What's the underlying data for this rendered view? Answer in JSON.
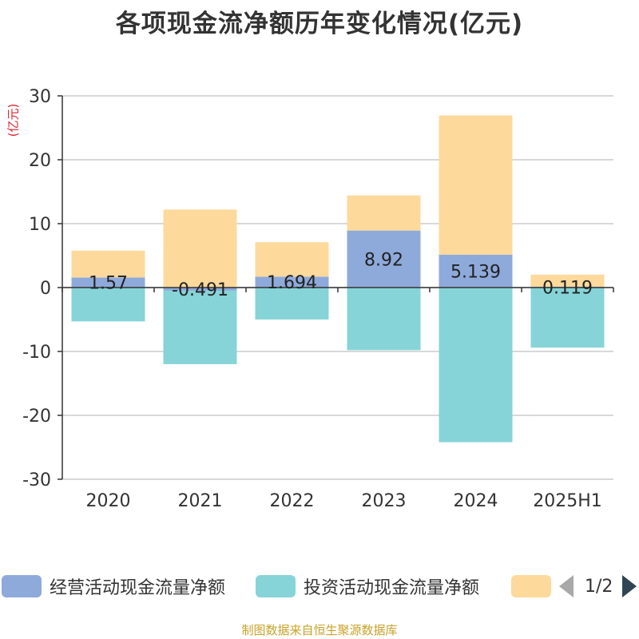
{
  "title": "各项现金流净额历年变化情况(亿元)",
  "y_unit": "(亿元)",
  "source": "制图数据来自恒生聚源数据库",
  "legend": {
    "items": [
      {
        "label": "经营活动现金流量净额",
        "color": "#8eaadb"
      },
      {
        "label": "投资活动现金流量净额",
        "color": "#86d4d7"
      },
      {
        "label": "",
        "color": "#fdd99b"
      }
    ],
    "page": "1/2"
  },
  "chart_data": {
    "type": "bar",
    "stacked": true,
    "categories": [
      "2020",
      "2021",
      "2022",
      "2023",
      "2024",
      "2025H1"
    ],
    "ylim": [
      -30,
      30
    ],
    "yticks": [
      30,
      20,
      10,
      0,
      -10,
      -20,
      -30
    ],
    "grid": true,
    "legend_position": "bottom",
    "series": [
      {
        "name": "经营活动现金流量净额",
        "color": "#8eaadb",
        "values": [
          1.57,
          -0.491,
          1.694,
          8.92,
          5.139,
          0.119
        ],
        "labels": [
          "1.57",
          "-0.491",
          "1.694",
          "8.92",
          "5.139",
          "0.119"
        ]
      },
      {
        "name": "投资活动现金流量净额",
        "color": "#86d4d7",
        "values": [
          -5.3,
          -11.5,
          -5.0,
          -9.8,
          -24.2,
          -9.4
        ]
      },
      {
        "name": "",
        "color": "#fdd99b",
        "values": [
          4.2,
          12.2,
          5.4,
          5.5,
          21.8,
          1.9
        ]
      }
    ]
  }
}
